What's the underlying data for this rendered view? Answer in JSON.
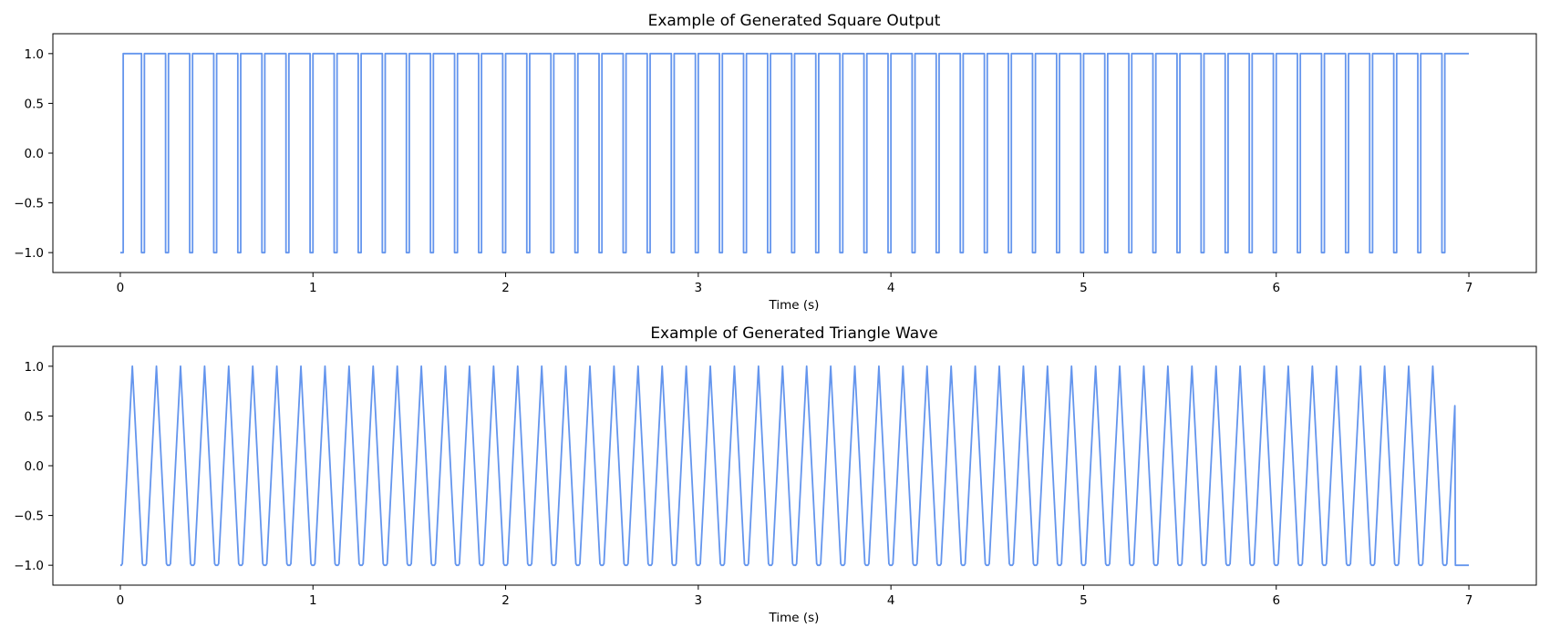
{
  "colors": {
    "line": "#6495ED",
    "background": "#ffffff",
    "axes": "#000000"
  },
  "chart_data": [
    {
      "type": "line",
      "title": "Example of Generated Square Output",
      "xlabel": "Time (s)",
      "ylabel": "",
      "xlim": [
        -0.35,
        7.35
      ],
      "ylim": [
        -1.2,
        1.2
      ],
      "xticks": [
        0,
        1,
        2,
        3,
        4,
        5,
        6,
        7
      ],
      "xtick_labels": [
        "0",
        "1",
        "2",
        "3",
        "4",
        "5",
        "6",
        "7"
      ],
      "yticks": [
        1.0,
        0.5,
        0.0,
        -0.5,
        -1.0
      ],
      "ytick_labels": [
        "1.0",
        "0.5",
        "0.0",
        "−0.5",
        "−1.0"
      ],
      "grid": false,
      "legend": "none",
      "waveform": "square",
      "amplitude": [
        -1,
        1
      ],
      "duration_s": 7,
      "frequency_hz": 8,
      "low_fraction_per_cycle": 0.12
    },
    {
      "type": "line",
      "title": "Example of Generated Triangle Wave",
      "xlabel": "Time (s)",
      "ylabel": "",
      "xlim": [
        -0.35,
        7.35
      ],
      "ylim": [
        -1.2,
        1.2
      ],
      "xticks": [
        0,
        1,
        2,
        3,
        4,
        5,
        6,
        7
      ],
      "xtick_labels": [
        "0",
        "1",
        "2",
        "3",
        "4",
        "5",
        "6",
        "7"
      ],
      "yticks": [
        1.0,
        0.5,
        0.0,
        -0.5,
        -1.0
      ],
      "ytick_labels": [
        "1.0",
        "0.5",
        "0.0",
        "−0.5",
        "−1.0"
      ],
      "grid": false,
      "legend": "none",
      "waveform": "triangle",
      "amplitude": [
        -1,
        1
      ],
      "duration_s": 7,
      "frequency_hz": 8,
      "tail_hold_value": -1
    }
  ]
}
